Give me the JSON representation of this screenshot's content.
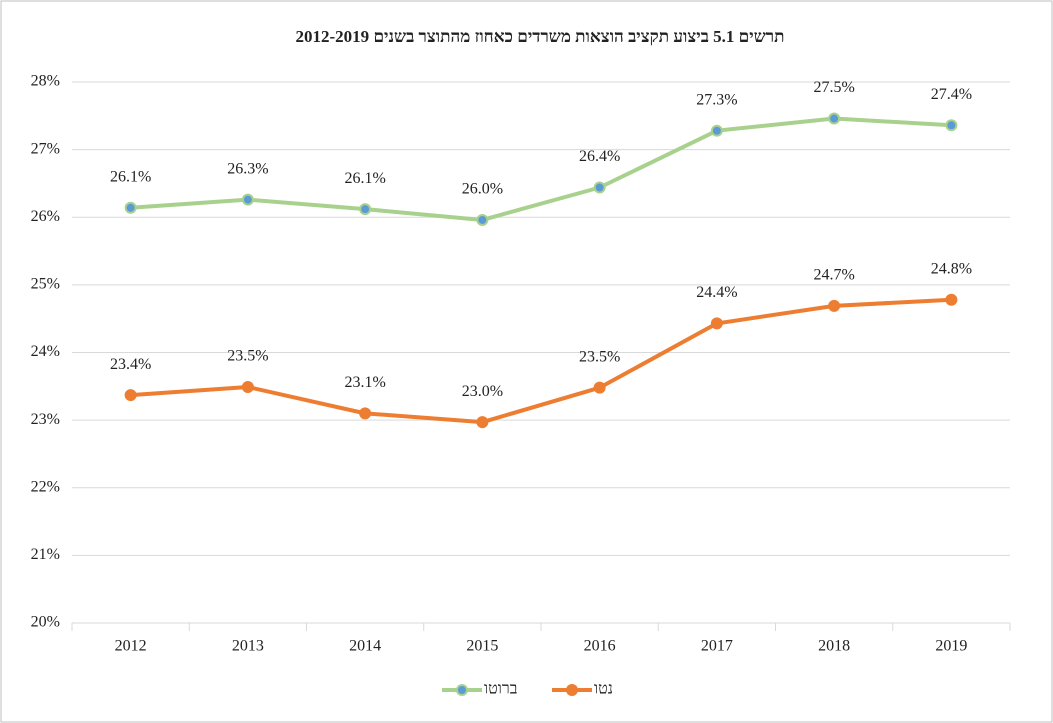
{
  "chart_data": {
    "type": "line",
    "title": "תרשים 5.1 ביצוע תקציב הוצאות משרדים כאחוז מהתוצר בשנים 2012-2019",
    "categories": [
      "2012",
      "2013",
      "2014",
      "2015",
      "2016",
      "2017",
      "2018",
      "2019"
    ],
    "series": [
      {
        "name": "ברוטו",
        "color": "#a9d18e",
        "marker_color": "#5b9bd5",
        "values": [
          26.14,
          26.26,
          26.12,
          25.96,
          26.44,
          27.28,
          27.46,
          27.36
        ],
        "value_labels": [
          "26.1%",
          "26.3%",
          "26.1%",
          "26.0%",
          "26.4%",
          "27.3%",
          "27.5%",
          "27.4%"
        ]
      },
      {
        "name": "נטו",
        "color": "#ed7d31",
        "marker_color": "#ed7d31",
        "values": [
          23.37,
          23.49,
          23.1,
          22.97,
          23.48,
          24.43,
          24.69,
          24.78
        ],
        "value_labels": [
          "23.4%",
          "23.5%",
          "23.1%",
          "23.0%",
          "23.5%",
          "24.4%",
          "24.7%",
          "24.8%"
        ]
      }
    ],
    "ylim": [
      20,
      28
    ],
    "yticks": [
      {
        "value": 20,
        "label": "20%"
      },
      {
        "value": 21,
        "label": "21%"
      },
      {
        "value": 22,
        "label": "22%"
      },
      {
        "value": 23,
        "label": "23%"
      },
      {
        "value": 24,
        "label": "24%"
      },
      {
        "value": 25,
        "label": "25%"
      },
      {
        "value": 26,
        "label": "26%"
      },
      {
        "value": 27,
        "label": "27%"
      },
      {
        "value": 28,
        "label": "28%"
      }
    ],
    "grid": true,
    "legend": "bottom"
  }
}
